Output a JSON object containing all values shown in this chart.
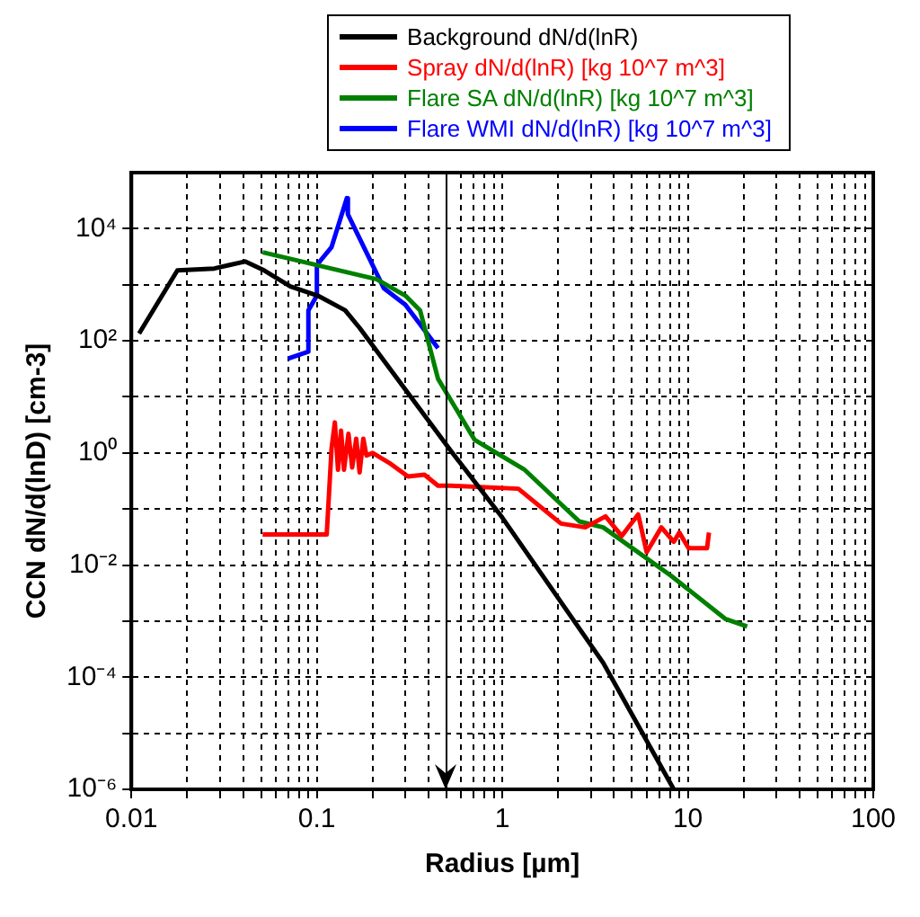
{
  "chart_data": {
    "type": "line",
    "xlabel": "Radius [µm]",
    "ylabel": "CCN dN/d(lnD) [cm-3]",
    "log": "xy",
    "grid": true,
    "legend": "top",
    "marker": "none",
    "line_style": "solid",
    "xlim": [
      0.01,
      100
    ],
    "ylim": [
      1e-06,
      100000.0
    ],
    "xticks": [
      0.01,
      {
        "value": 0.02,
        "label": null
      },
      {
        "value": 0.03,
        "label": null
      },
      {
        "value": 0.04,
        "label": null
      },
      {
        "value": 0.05,
        "label": null
      },
      {
        "value": 0.06,
        "label": null
      },
      {
        "value": 0.07,
        "label": null
      },
      {
        "value": 0.08,
        "label": null
      },
      {
        "value": 0.09,
        "label": null
      },
      0.1,
      {
        "value": 0.2,
        "label": null
      },
      {
        "value": 0.3,
        "label": null
      },
      {
        "value": 0.4,
        "label": null
      },
      {
        "value": 0.5,
        "label": null
      },
      {
        "value": 0.6,
        "label": null
      },
      {
        "value": 0.7,
        "label": null
      },
      {
        "value": 0.8,
        "label": null
      },
      {
        "value": 0.9,
        "label": null
      },
      1,
      {
        "value": 2,
        "label": null
      },
      {
        "value": 3,
        "label": null
      },
      {
        "value": 4,
        "label": null
      },
      {
        "value": 5,
        "label": null
      },
      {
        "value": 6,
        "label": null
      },
      {
        "value": 7,
        "label": null
      },
      {
        "value": 8,
        "label": null
      },
      {
        "value": 9,
        "label": null
      },
      10,
      {
        "value": 20,
        "label": null
      },
      {
        "value": 30,
        "label": null
      },
      {
        "value": 40,
        "label": null
      },
      {
        "value": 50,
        "label": null
      },
      {
        "value": 60,
        "label": null
      },
      {
        "value": 70,
        "label": null
      },
      {
        "value": 80,
        "label": null
      },
      {
        "value": 90,
        "label": null
      },
      100
    ],
    "yticks": [
      {
        "value": 1e-06,
        "label": "10⁻⁶"
      },
      {
        "value": 1e-05,
        "label": null
      },
      {
        "value": 0.0001,
        "label": "10⁻⁴"
      },
      {
        "value": 0.001,
        "label": null
      },
      {
        "value": 0.01,
        "label": "10⁻²"
      },
      {
        "value": 0.1,
        "label": null
      },
      {
        "value": 1,
        "label": "10⁰"
      },
      {
        "value": 10,
        "label": null
      },
      {
        "value": 100,
        "label": "10²"
      },
      {
        "value": 1000,
        "label": null
      },
      {
        "value": 10000,
        "label": "10⁴"
      }
    ],
    "ref_lines": [
      {
        "axis": "x",
        "value": 0.5,
        "color": "#000000",
        "line_style": "solid"
      }
    ],
    "series": [
      {
        "name": "Background dN/d(lnR)",
        "color": "#000000",
        "x": [
          0.011,
          0.0177,
          0.028,
          0.041,
          0.052,
          0.072,
          0.101,
          0.142,
          0.17,
          0.53,
          1,
          3.5,
          8.4
        ],
        "values": [
          135,
          1800,
          1950,
          2600,
          1800,
          930,
          640,
          350,
          170,
          1.07,
          0.07,
          0.00018,
          1e-06
        ]
      },
      {
        "name": "Spray dN/d(lnR) [kg 10^7 m^3]",
        "color": "#ff0000",
        "x": [
          0.051,
          0.113,
          0.12,
          0.125,
          0.13,
          0.135,
          0.14,
          0.148,
          0.155,
          0.163,
          0.17,
          0.178,
          0.185,
          0.2,
          0.25,
          0.31,
          0.38,
          0.45,
          0.53,
          1.22,
          2.07,
          2.8,
          3.6,
          4.4,
          5.4,
          6,
          7.2,
          8.4,
          9,
          10.1,
          12.7,
          13
        ],
        "values": [
          0.035,
          0.035,
          1.2,
          3.5,
          0.5,
          2.5,
          0.5,
          2.2,
          0.55,
          1.8,
          0.45,
          1.8,
          0.9,
          1,
          0.64,
          0.38,
          0.41,
          0.26,
          0.26,
          0.23,
          0.055,
          0.047,
          0.074,
          0.033,
          0.08,
          0.017,
          0.047,
          0.026,
          0.038,
          0.02,
          0.02,
          0.038
        ]
      },
      {
        "name": "Flare SA dN/d(lnR) [kg 10^7 m^3]",
        "color": "#008000",
        "x": [
          0.051,
          0.21,
          0.3,
          0.36,
          0.45,
          0.71,
          1.31,
          2.6,
          3.5,
          8.1,
          15.9,
          20.9
        ],
        "values": [
          3800,
          1250,
          640,
          350,
          21,
          1.7,
          0.51,
          0.06,
          0.047,
          0.0065,
          0.0011,
          0.0008
        ]
      },
      {
        "name": "Flare WMI dN/d(lnR) [kg 10^7 m^3]",
        "color": "#0000ff",
        "x": [
          0.07,
          0.09,
          0.09,
          0.1,
          0.1,
          0.12,
          0.145,
          0.147,
          0.23,
          0.3,
          0.45
        ],
        "values": [
          48,
          64,
          350,
          640,
          2250,
          4700,
          35000,
          18000,
          860,
          440,
          74
        ]
      }
    ]
  }
}
